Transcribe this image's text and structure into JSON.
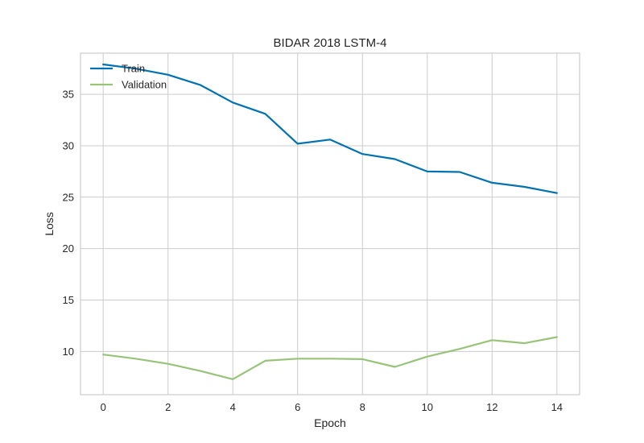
{
  "chart_data": {
    "type": "line",
    "title": "BIDAR 2018 LSTM-4",
    "xlabel": "Epoch",
    "ylabel": "Loss",
    "x": [
      0,
      1,
      2,
      3,
      4,
      5,
      6,
      7,
      8,
      9,
      10,
      11,
      12,
      13,
      14
    ],
    "xlim": [
      -0.7,
      14.7
    ],
    "ylim": [
      5.8,
      39.0
    ],
    "xticks": [
      0,
      2,
      4,
      6,
      8,
      10,
      12,
      14
    ],
    "yticks": [
      10,
      15,
      20,
      25,
      30,
      35
    ],
    "grid": true,
    "legend_position": "top-left",
    "series": [
      {
        "name": "Train",
        "color": "#0072B2",
        "values": [
          37.9,
          37.5,
          36.9,
          35.9,
          34.2,
          33.1,
          30.2,
          30.6,
          29.2,
          28.7,
          27.5,
          27.45,
          26.4,
          26.0,
          25.4
        ]
      },
      {
        "name": "Validation",
        "color": "#98C379",
        "values": [
          9.7,
          9.3,
          8.8,
          8.1,
          7.3,
          9.1,
          9.3,
          9.3,
          9.25,
          8.5,
          9.5,
          10.25,
          11.1,
          10.8,
          11.4
        ]
      }
    ]
  }
}
